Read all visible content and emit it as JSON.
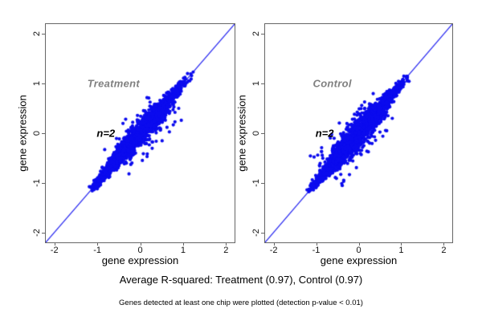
{
  "captions": {
    "r_squared_line": "Average R-squared: Treatment (0.97), Control (0.97)",
    "note_line": "Genes detected at least one chip were plotted (detection p-value < 0.01)"
  },
  "chart_data": {
    "type": "scatter",
    "layout": "two_panel_side_by_side",
    "xlabel": "gene expression",
    "ylabel": "gene expression",
    "xlim": [
      -2.2,
      2.2
    ],
    "ylim": [
      -2.2,
      2.2
    ],
    "x_ticks": [
      "-2",
      "-1",
      "0",
      "1",
      "2"
    ],
    "y_ticks": [
      "-2",
      "-1",
      "0",
      "1",
      "2"
    ],
    "grid": false,
    "identity_line": true,
    "legend": "none",
    "colors": {
      "points": "#0b0bee",
      "identity_line": "#2a2af0",
      "axis_frame": "#666666",
      "tick_label": "#111111",
      "group_label": "#808080",
      "annotation": "#000000",
      "background": "#ffffff"
    },
    "average_r_squared": {
      "Treatment": 0.97,
      "Control": 0.97
    },
    "point_radius_px": 2.1,
    "panels": [
      {
        "group_label": "Treatment",
        "annotation": "n=2",
        "label_pos": [
          -0.62,
          1.0
        ],
        "annotation_pos": [
          -0.8,
          0.0
        ],
        "r_squared": 0.97,
        "cloud": {
          "seed": 101,
          "n_points": 2600,
          "t_range": [
            -1.13,
            1.22
          ],
          "mixture": [
            {
              "w": 0.5,
              "mean": -0.55,
              "sd": 0.28
            },
            {
              "w": 0.5,
              "mean": 0.25,
              "sd": 0.4
            }
          ],
          "noise_base": 0.03,
          "noise_peak": 0.075,
          "noise_center": 0.1,
          "noise_width": 0.62,
          "outliers": {
            "count": 42,
            "above_fraction": 0.25,
            "t_range": [
              -0.6,
              0.7
            ],
            "offset_range": [
              0.12,
              0.5
            ]
          }
        }
      },
      {
        "group_label": "Control",
        "annotation": "n=2",
        "label_pos": [
          -0.62,
          1.0
        ],
        "annotation_pos": [
          -0.8,
          0.0
        ],
        "r_squared": 0.97,
        "cloud": {
          "seed": 202,
          "n_points": 2600,
          "t_range": [
            -1.15,
            1.2
          ],
          "mixture": [
            {
              "w": 0.5,
              "mean": -0.55,
              "sd": 0.28
            },
            {
              "w": 0.5,
              "mean": 0.25,
              "sd": 0.4
            }
          ],
          "noise_base": 0.032,
          "noise_peak": 0.082,
          "noise_center": 0.05,
          "noise_width": 0.62,
          "outliers": {
            "count": 60,
            "above_fraction": 0.5,
            "t_range": [
              -0.8,
              0.6
            ],
            "offset_range": [
              0.12,
              0.48
            ]
          }
        }
      }
    ]
  }
}
